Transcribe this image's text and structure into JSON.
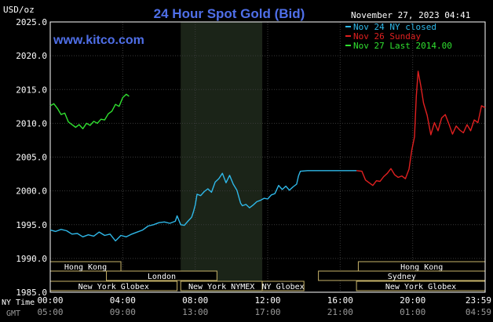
{
  "chart_data": {
    "type": "line",
    "title": "24 Hour Spot Gold (Bid)",
    "watermark": "www.kitco.com",
    "units_label": "USD/oz",
    "timestamp": "November 27, 2023 04:41",
    "ylim": [
      1985.0,
      2025.0
    ],
    "y_ticks": [
      "2025.0",
      "2020.0",
      "2015.0",
      "2010.0",
      "2005.0",
      "2000.0",
      "1995.0",
      "1990.0",
      "1985.0"
    ],
    "y_tick_values": [
      2025,
      2020,
      2015,
      2010,
      2005,
      2000,
      1995,
      1990,
      1985
    ],
    "xlim_hours": [
      0,
      24
    ],
    "x_row_ny_label": "NY Time",
    "x_row_gmt_label": "GMT",
    "x_ticks_ny": [
      "00:00",
      "04:00",
      "08:00",
      "12:00",
      "16:00",
      "20:00",
      "23:59"
    ],
    "x_ticks_gmt": [
      "05:00",
      "09:00",
      "13:00",
      "17:00",
      "21:00",
      "01:00",
      "04:59"
    ],
    "x_tick_hours": [
      0,
      4,
      8,
      12,
      16,
      20,
      24
    ],
    "grid": true,
    "shaded_session_hours": [
      7.2,
      11.7
    ],
    "legend": {
      "position": "top-right",
      "entries": [
        {
          "label": "Nov 24 NY closed",
          "color": "#2fb8e8"
        },
        {
          "label": "Nov 26 Sunday",
          "color": "#e02020"
        },
        {
          "label": "Nov 27 Last 2014.00",
          "color": "#30e030"
        }
      ]
    },
    "market_sessions": [
      {
        "label": "Hong Kong",
        "row": 0,
        "start_hour": 0,
        "end_hour": 3.9
      },
      {
        "label": "London",
        "row": 1,
        "start_hour": 3.1,
        "end_hour": 9.2
      },
      {
        "label": "New York Globex",
        "row": 2,
        "start_hour": 0,
        "end_hour": 7.0
      },
      {
        "label": "New York NYMEX",
        "row": 2,
        "start_hour": 7.2,
        "end_hour": 11.7
      },
      {
        "label": "NY Globex",
        "row": 2,
        "start_hour": 11.7,
        "end_hour": 14.0
      },
      {
        "label": "Hong Kong",
        "row": 0,
        "start_hour": 17.0,
        "end_hour": 24.0
      },
      {
        "label": "Sydney",
        "row": 1,
        "start_hour": 14.8,
        "end_hour": 24.0
      },
      {
        "label": "New York Globex",
        "row": 2,
        "start_hour": 16.9,
        "end_hour": 24.0
      }
    ],
    "series": [
      {
        "name": "Nov 24 NY closed",
        "color": "#2fb8e8",
        "points": [
          [
            0.0,
            1994.2
          ],
          [
            0.3,
            1994.0
          ],
          [
            0.6,
            1994.3
          ],
          [
            0.9,
            1994.1
          ],
          [
            1.2,
            1993.6
          ],
          [
            1.5,
            1993.7
          ],
          [
            1.8,
            1993.2
          ],
          [
            2.1,
            1993.5
          ],
          [
            2.4,
            1993.3
          ],
          [
            2.7,
            1993.9
          ],
          [
            3.0,
            1993.4
          ],
          [
            3.3,
            1993.6
          ],
          [
            3.6,
            1992.6
          ],
          [
            3.9,
            1993.4
          ],
          [
            4.2,
            1993.2
          ],
          [
            4.5,
            1993.6
          ],
          [
            4.8,
            1993.9
          ],
          [
            5.1,
            1994.2
          ],
          [
            5.4,
            1994.8
          ],
          [
            5.7,
            1995.0
          ],
          [
            6.0,
            1995.3
          ],
          [
            6.3,
            1995.4
          ],
          [
            6.6,
            1995.2
          ],
          [
            6.9,
            1995.5
          ],
          [
            7.0,
            1996.3
          ],
          [
            7.2,
            1995.0
          ],
          [
            7.4,
            1994.9
          ],
          [
            7.6,
            1995.5
          ],
          [
            7.8,
            1996.1
          ],
          [
            7.9,
            1996.9
          ],
          [
            8.0,
            1997.9
          ],
          [
            8.1,
            1999.5
          ],
          [
            8.3,
            1999.3
          ],
          [
            8.5,
            1999.9
          ],
          [
            8.7,
            2000.3
          ],
          [
            8.9,
            1999.8
          ],
          [
            9.1,
            2001.3
          ],
          [
            9.3,
            2001.8
          ],
          [
            9.5,
            2002.6
          ],
          [
            9.7,
            2001.2
          ],
          [
            9.9,
            2002.3
          ],
          [
            10.1,
            2001.0
          ],
          [
            10.3,
            2000.1
          ],
          [
            10.5,
            1998.2
          ],
          [
            10.6,
            1997.8
          ],
          [
            10.8,
            1998.0
          ],
          [
            11.0,
            1997.5
          ],
          [
            11.2,
            1997.9
          ],
          [
            11.4,
            1998.4
          ],
          [
            11.6,
            1998.6
          ],
          [
            11.8,
            1998.9
          ],
          [
            12.0,
            1998.8
          ],
          [
            12.2,
            1999.4
          ],
          [
            12.4,
            1999.6
          ],
          [
            12.6,
            2000.8
          ],
          [
            12.8,
            2000.2
          ],
          [
            13.0,
            2000.7
          ],
          [
            13.2,
            2000.1
          ],
          [
            13.4,
            2000.6
          ],
          [
            13.6,
            2001.0
          ],
          [
            13.7,
            2002.2
          ],
          [
            13.8,
            2002.9
          ],
          [
            14.2,
            2003.0
          ],
          [
            15.0,
            2003.0
          ],
          [
            15.8,
            2003.0
          ],
          [
            16.6,
            2003.0
          ],
          [
            16.9,
            2003.0
          ]
        ]
      },
      {
        "name": "Nov 26 Sunday",
        "color": "#e02020",
        "points": [
          [
            16.9,
            2003.0
          ],
          [
            17.2,
            2002.9
          ],
          [
            17.4,
            2001.6
          ],
          [
            17.6,
            2001.2
          ],
          [
            17.8,
            2000.8
          ],
          [
            18.0,
            2001.5
          ],
          [
            18.2,
            2001.4
          ],
          [
            18.4,
            2002.1
          ],
          [
            18.6,
            2002.6
          ],
          [
            18.8,
            2003.3
          ],
          [
            19.0,
            2002.4
          ],
          [
            19.2,
            2002.0
          ],
          [
            19.4,
            2002.2
          ],
          [
            19.6,
            2001.8
          ],
          [
            19.8,
            2003.2
          ],
          [
            19.95,
            2006.0
          ],
          [
            20.1,
            2008.0
          ],
          [
            20.2,
            2014.0
          ],
          [
            20.3,
            2017.7
          ],
          [
            20.45,
            2015.5
          ],
          [
            20.6,
            2013.0
          ],
          [
            20.8,
            2011.2
          ],
          [
            21.0,
            2008.3
          ],
          [
            21.2,
            2010.1
          ],
          [
            21.4,
            2008.9
          ],
          [
            21.6,
            2010.8
          ],
          [
            21.8,
            2011.3
          ],
          [
            22.0,
            2009.9
          ],
          [
            22.2,
            2008.4
          ],
          [
            22.4,
            2009.6
          ],
          [
            22.6,
            2009.0
          ],
          [
            22.8,
            2008.6
          ],
          [
            23.0,
            2009.8
          ],
          [
            23.2,
            2008.9
          ],
          [
            23.4,
            2010.5
          ],
          [
            23.6,
            2010.1
          ],
          [
            23.8,
            2012.6
          ],
          [
            24.0,
            2012.3
          ]
        ]
      },
      {
        "name": "Nov 27 Last 2014.00",
        "color": "#30e030",
        "points": [
          [
            0.0,
            2012.6
          ],
          [
            0.2,
            2012.9
          ],
          [
            0.4,
            2012.2
          ],
          [
            0.6,
            2011.3
          ],
          [
            0.8,
            2011.5
          ],
          [
            1.0,
            2010.2
          ],
          [
            1.2,
            2009.8
          ],
          [
            1.4,
            2009.4
          ],
          [
            1.6,
            2009.8
          ],
          [
            1.8,
            2009.2
          ],
          [
            2.0,
            2010.0
          ],
          [
            2.2,
            2009.7
          ],
          [
            2.4,
            2010.3
          ],
          [
            2.6,
            2010.0
          ],
          [
            2.8,
            2010.6
          ],
          [
            3.0,
            2010.5
          ],
          [
            3.2,
            2011.4
          ],
          [
            3.4,
            2011.8
          ],
          [
            3.6,
            2012.8
          ],
          [
            3.8,
            2012.5
          ],
          [
            4.0,
            2013.8
          ],
          [
            4.2,
            2014.3
          ],
          [
            4.35,
            2014.0
          ]
        ]
      }
    ]
  }
}
